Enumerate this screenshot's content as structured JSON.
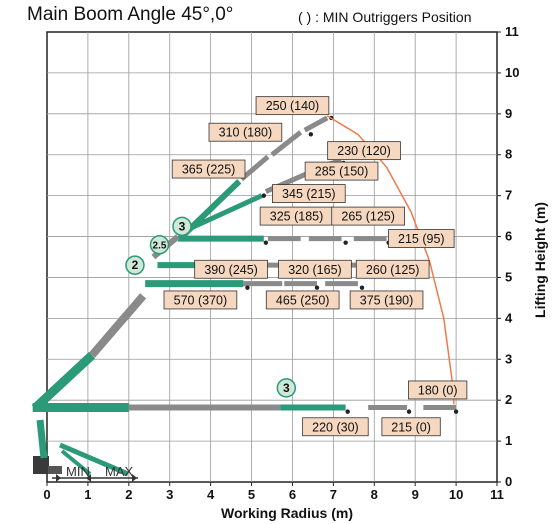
{
  "title": "Main Boom Angle 45°,0°",
  "subtitle": "( ) : MIN Outriggers Position",
  "axes": {
    "x_label": "Working Radius (m)",
    "y_label": "Lifting Height (m)",
    "x_ticks": [
      "0",
      "1",
      "2",
      "3",
      "4",
      "5",
      "6",
      "7",
      "8",
      "9",
      "10",
      "11"
    ],
    "y_ticks": [
      "0",
      "1",
      "2",
      "3",
      "4",
      "5",
      "6",
      "7",
      "8",
      "9",
      "10",
      "11"
    ]
  },
  "outrigger_labels": {
    "min": "MIN",
    "max": "MAX"
  },
  "section_markers": [
    {
      "id": "m2",
      "text": "2",
      "x": 2.15,
      "y": 5.3
    },
    {
      "id": "m25",
      "text": "2.5",
      "x": 2.75,
      "y": 5.8
    },
    {
      "id": "m3a",
      "text": "3",
      "x": 3.3,
      "y": 6.25
    },
    {
      "id": "m3b",
      "text": "3",
      "x": 5.85,
      "y": 2.3
    }
  ],
  "load_labels": [
    {
      "text": "250 (140)",
      "x": 6.0,
      "y": 9.2
    },
    {
      "text": "310 (180)",
      "x": 4.85,
      "y": 8.55
    },
    {
      "text": "230 (120)",
      "x": 7.75,
      "y": 8.1
    },
    {
      "text": "365 (225)",
      "x": 3.95,
      "y": 7.65
    },
    {
      "text": "285 (150)",
      "x": 7.2,
      "y": 7.6
    },
    {
      "text": "345 (215)",
      "x": 6.4,
      "y": 7.05
    },
    {
      "text": "325 (185)",
      "x": 6.1,
      "y": 6.5
    },
    {
      "text": "265 (125)",
      "x": 7.85,
      "y": 6.5
    },
    {
      "text": "215 (95)",
      "x": 9.15,
      "y": 5.95
    },
    {
      "text": "390 (245)",
      "x": 4.5,
      "y": 5.2
    },
    {
      "text": "320 (165)",
      "x": 6.55,
      "y": 5.2
    },
    {
      "text": "260 (125)",
      "x": 8.45,
      "y": 5.2
    },
    {
      "text": "570 (370)",
      "x": 3.75,
      "y": 4.45
    },
    {
      "text": "465 (250)",
      "x": 6.25,
      "y": 4.45
    },
    {
      "text": "375 (190)",
      "x": 8.3,
      "y": 4.45
    },
    {
      "text": "180 (0)",
      "x": 9.55,
      "y": 2.25
    },
    {
      "text": "220 (30)",
      "x": 7.05,
      "y": 1.35
    },
    {
      "text": "215 (0)",
      "x": 8.9,
      "y": 1.35
    }
  ],
  "colors": {
    "boom_green": "#2a9a78",
    "boom_gray": "#8a8a8a",
    "label_fill": "#f6d7bf",
    "envelope": "#f07a4a",
    "grid": "#9a9a9a"
  }
}
